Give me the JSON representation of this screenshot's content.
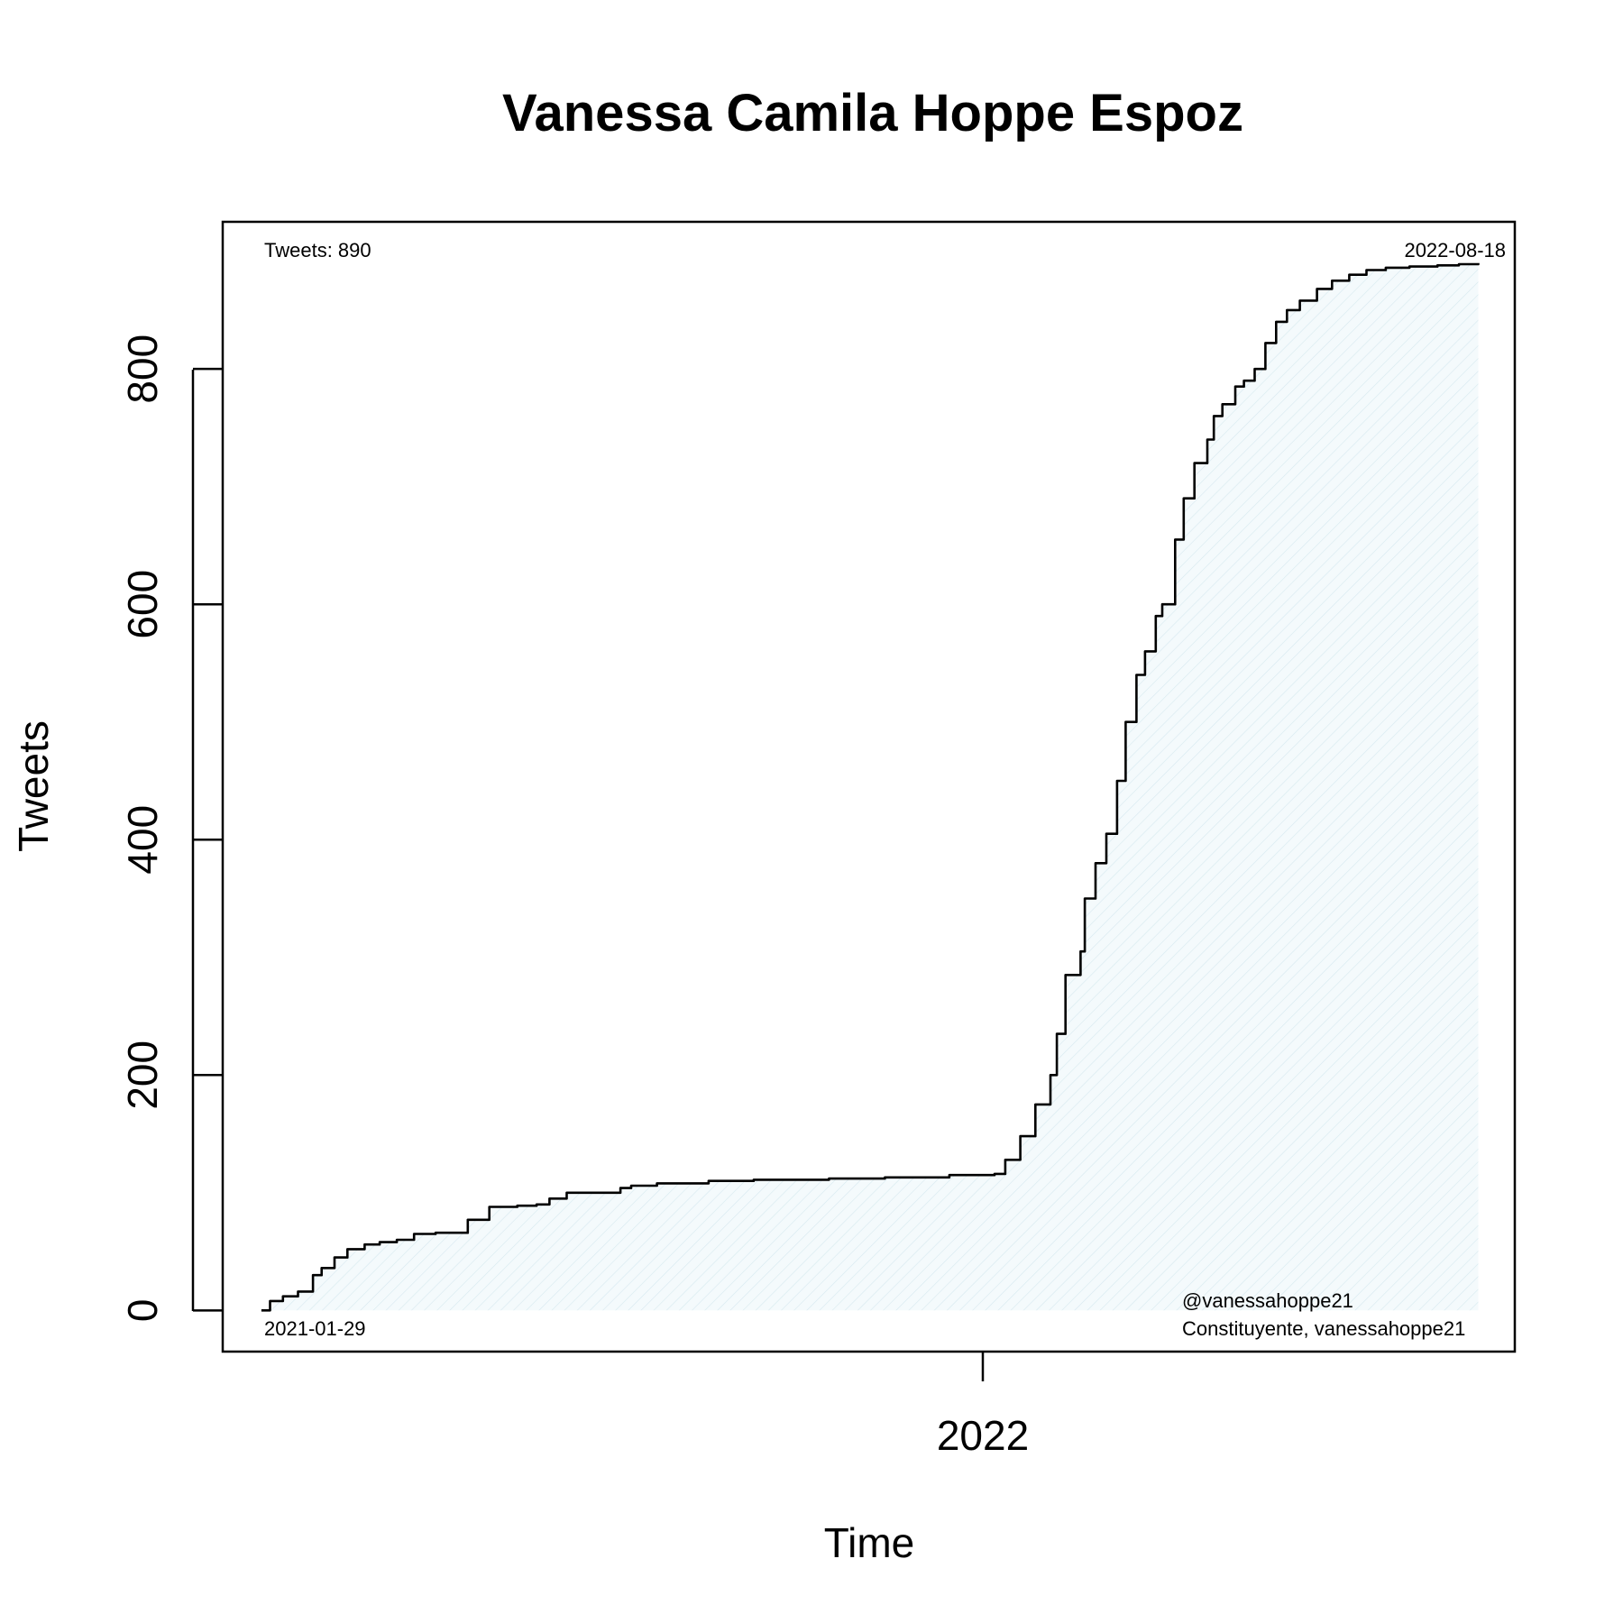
{
  "chart_data": {
    "type": "area",
    "title": "Vanessa Camila Hoppe Espoz",
    "xlabel": "Time",
    "ylabel": "Tweets",
    "x_ticks": [
      "2022"
    ],
    "y_ticks": [
      "0",
      "200",
      "400",
      "600",
      "800"
    ],
    "annotations": {
      "top_left": "Tweets: 890",
      "top_right": "2022-08-18",
      "bottom_left": "2021-01-29",
      "bottom_right_line1": "@vanessahoppe21",
      "bottom_right_line2": "Constituyente, vanessahoppe21"
    },
    "series": [
      {
        "x": [
          "2021-01-29",
          "2021-02-02",
          "2021-02-08",
          "2021-02-15",
          "2021-02-22",
          "2021-02-26",
          "2021-03-04",
          "2021-03-10",
          "2021-03-18",
          "2021-03-25",
          "2021-04-02",
          "2021-04-10",
          "2021-04-20",
          "2021-05-05",
          "2021-05-15",
          "2021-05-28",
          "2021-06-06",
          "2021-06-12",
          "2021-06-20",
          "2021-07-15",
          "2021-07-20",
          "2021-08-01",
          "2021-08-25",
          "2021-09-15",
          "2021-10-20",
          "2021-11-15",
          "2021-12-15",
          "2022-01-05",
          "2022-01-10",
          "2022-01-17",
          "2022-01-24",
          "2022-01-31",
          "2022-02-03",
          "2022-02-07",
          "2022-02-14",
          "2022-02-16",
          "2022-02-21",
          "2022-02-26",
          "2022-03-03",
          "2022-03-07",
          "2022-03-12",
          "2022-03-16",
          "2022-03-21",
          "2022-03-24",
          "2022-03-30",
          "2022-04-03",
          "2022-04-08",
          "2022-04-14",
          "2022-04-17",
          "2022-04-21",
          "2022-04-27",
          "2022-05-01",
          "2022-05-06",
          "2022-05-11",
          "2022-05-16",
          "2022-05-21",
          "2022-05-27",
          "2022-06-04",
          "2022-06-11",
          "2022-06-19",
          "2022-06-27",
          "2022-07-06",
          "2022-07-17",
          "2022-07-30",
          "2022-08-09",
          "2022-08-18"
        ],
        "y": [
          0,
          8,
          12,
          16,
          30,
          36,
          45,
          52,
          56,
          58,
          60,
          65,
          66,
          77,
          88,
          89,
          90,
          95,
          100,
          104,
          106,
          108,
          110,
          111,
          112,
          113,
          115,
          116,
          128,
          148,
          175,
          200,
          235,
          285,
          305,
          350,
          380,
          405,
          450,
          500,
          540,
          560,
          590,
          600,
          655,
          690,
          720,
          740,
          760,
          770,
          785,
          790,
          800,
          822,
          840,
          850,
          858,
          868,
          875,
          880,
          884,
          886,
          887,
          888,
          889,
          890
        ]
      }
    ],
    "ylim": [
      -35,
      925
    ],
    "xlim": [
      "2021-01-11",
      "2022-09-04"
    ]
  }
}
